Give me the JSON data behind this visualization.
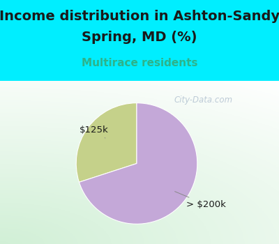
{
  "title_line1": "Income distribution in Ashton-Sandy",
  "title_line2": "Spring, MD (%)",
  "subtitle": "Multirace residents",
  "title_color": "#1a1a1a",
  "subtitle_color": "#2db38a",
  "bg_color": "#00eeff",
  "chart_bg_left": "#c8e8cc",
  "chart_bg_right": "#f0faf8",
  "slices": [
    {
      "label": "$125k",
      "value": 30,
      "color": "#c5d18a"
    },
    {
      "label": "> $200k",
      "value": 70,
      "color": "#c4a8d8"
    }
  ],
  "watermark": "City-Data.com",
  "figsize": [
    4.0,
    3.5
  ],
  "dpi": 100,
  "title_fontsize": 14,
  "subtitle_fontsize": 11
}
